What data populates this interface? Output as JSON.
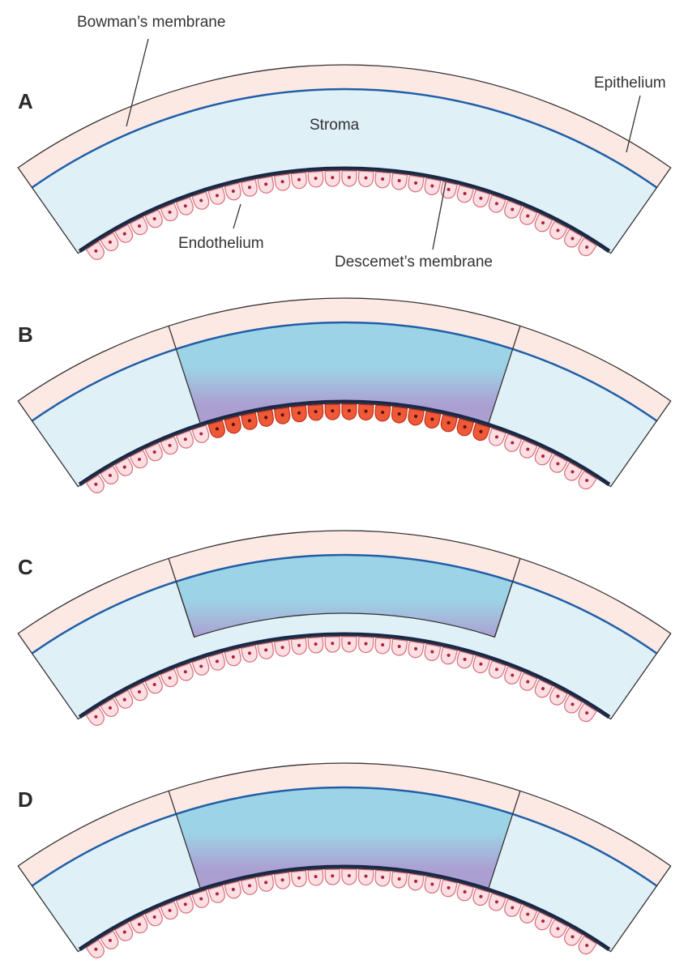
{
  "panels": [
    {
      "label": "A"
    },
    {
      "label": "B"
    },
    {
      "label": "C"
    },
    {
      "label": "D"
    }
  ],
  "labels": {
    "bowman": "Bowman’s membrane",
    "stroma": "Stroma",
    "epithelium": "Epithelium",
    "endothelium": "Endothelium",
    "descemet": "Descemet’s membrane"
  }
}
